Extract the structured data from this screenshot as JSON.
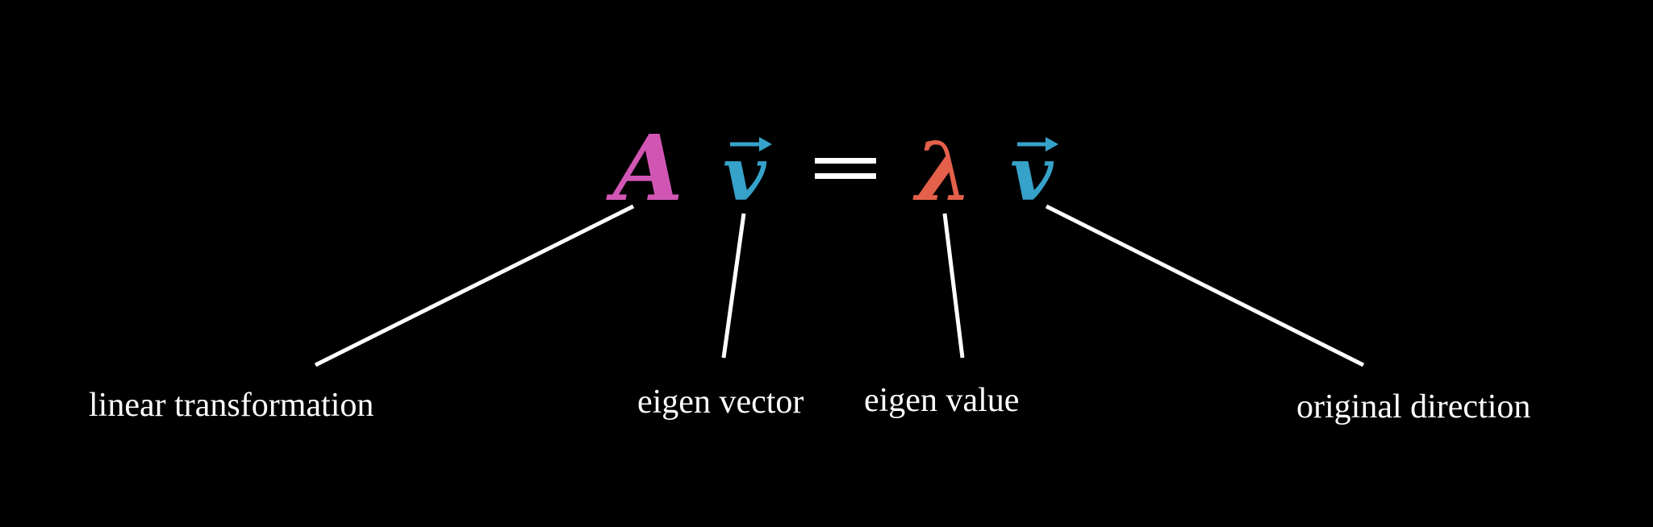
{
  "equation": {
    "matrix_symbol": "A",
    "vector_symbol_left": "v",
    "equals_sign": "=",
    "lambda_symbol": "λ",
    "vector_symbol_right": "v"
  },
  "labels": {
    "linear_transformation": "linear transformation",
    "eigen_vector": "eigen vector",
    "eigen_value": "eigen value",
    "original_direction": "original direction"
  },
  "colors": {
    "background": "#000000",
    "matrix": "#d156b4",
    "vector": "#36a2c9",
    "lambda": "#e4604a",
    "equals": "#ffffff",
    "leader_lines": "#ffffff",
    "label_text": "#ffffff"
  }
}
